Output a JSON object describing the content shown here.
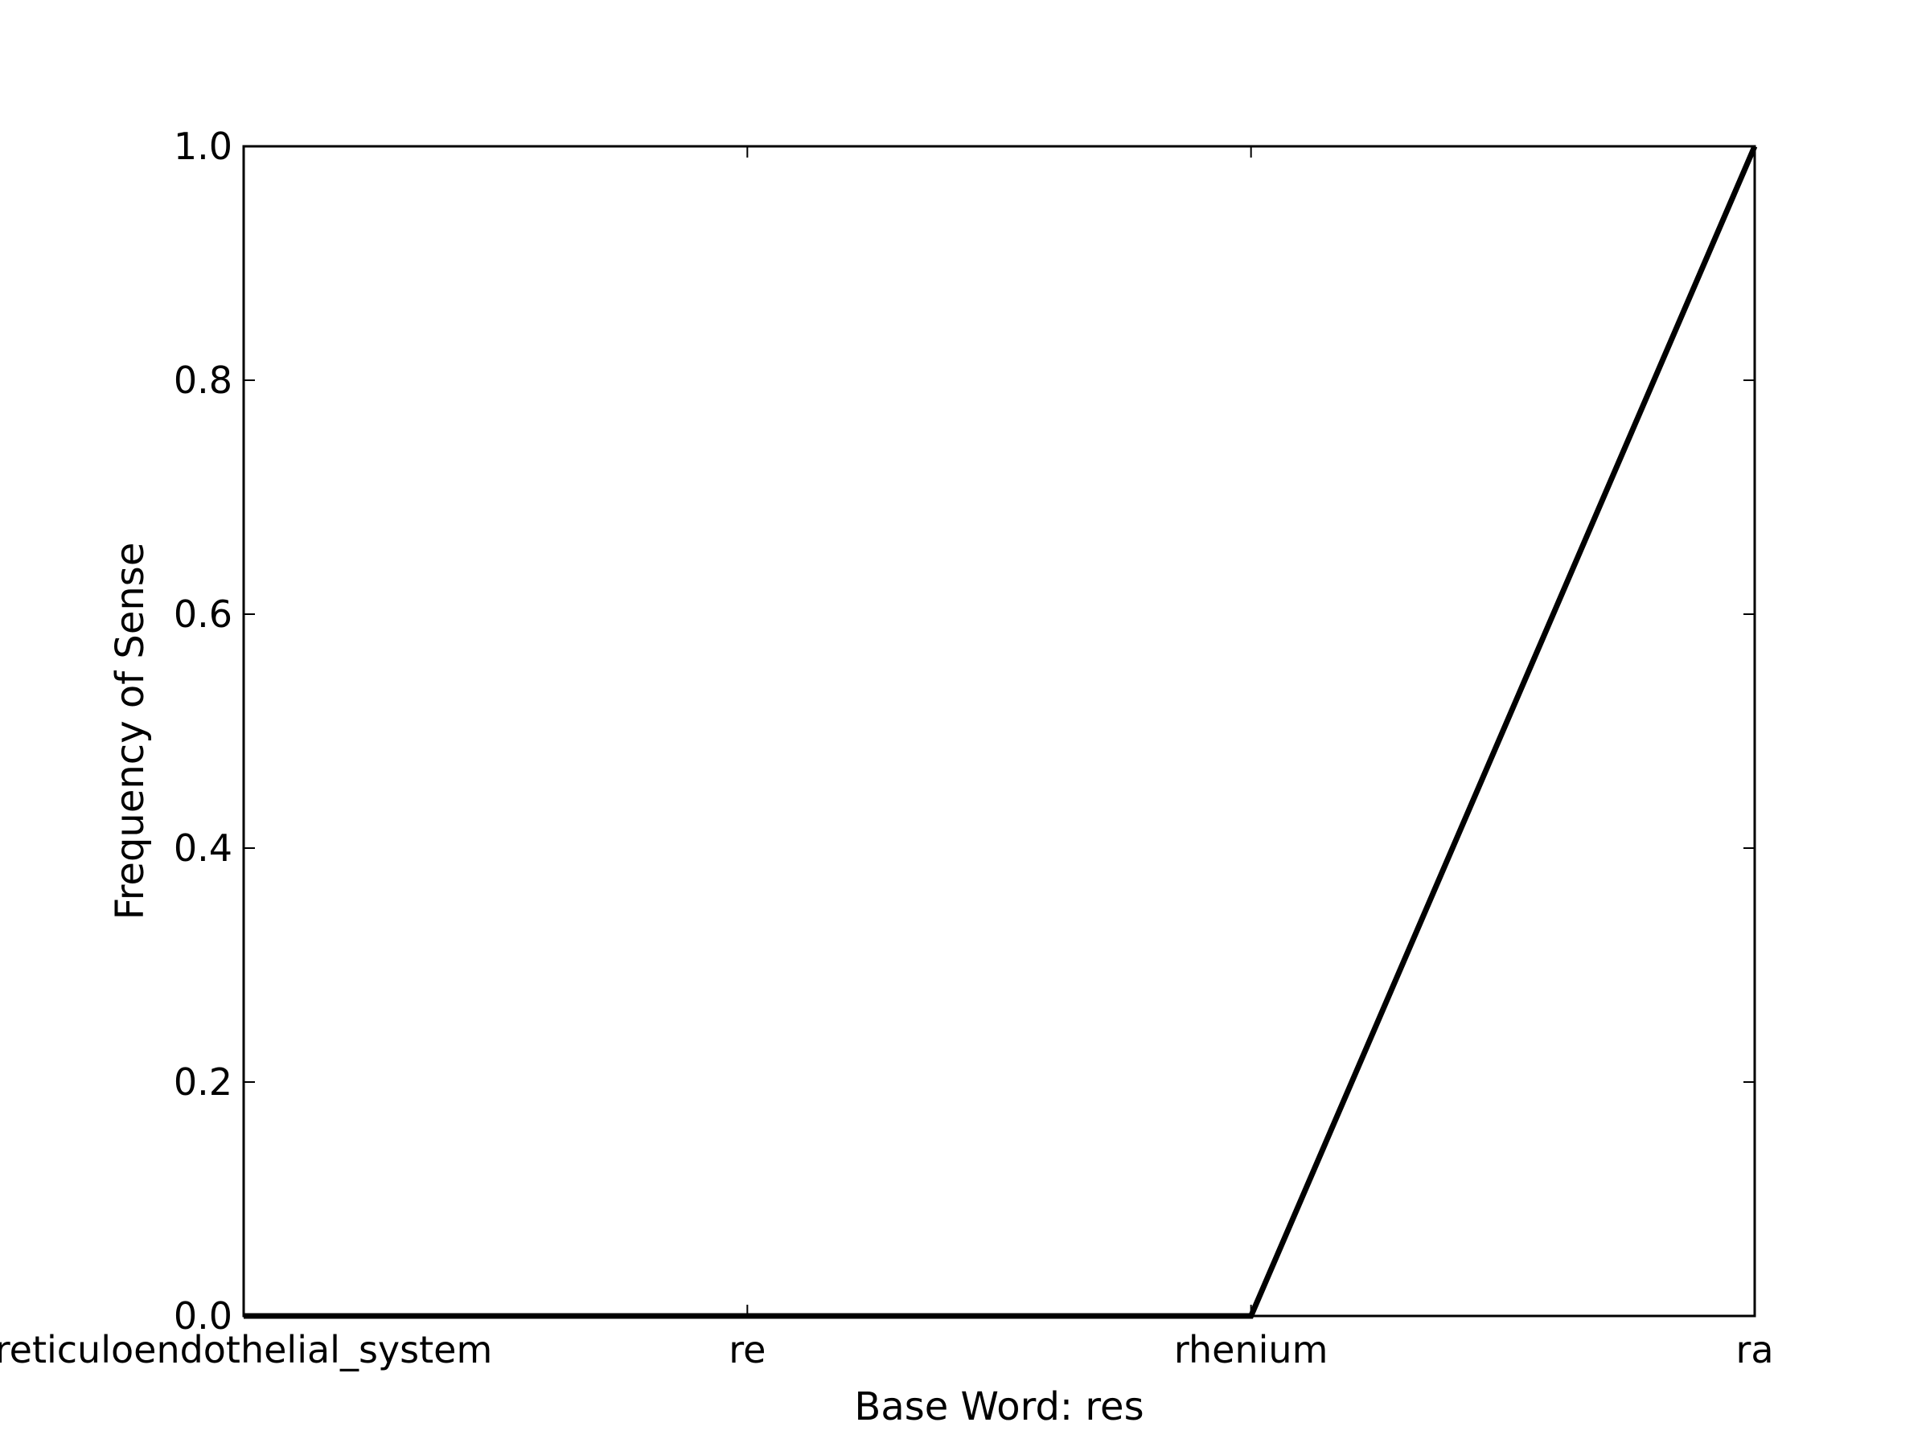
{
  "chart_data": {
    "type": "line",
    "categories": [
      "reticuloendothelial_system",
      "re",
      "rhenium",
      "ra"
    ],
    "series": [
      {
        "values": [
          0.0,
          0.0,
          0.0,
          1.0
        ]
      }
    ],
    "xlabel": "Base Word: res",
    "ylabel": "Frequency of Sense",
    "ylim": [
      0.0,
      1.0
    ],
    "yticks": [
      0.0,
      0.2,
      0.4,
      0.6,
      0.8,
      1.0
    ],
    "ytick_labels": [
      "0.0",
      "0.2",
      "0.4",
      "0.6",
      "0.8",
      "1.0"
    ],
    "grid": false,
    "legend": "none",
    "line_color": "#000000"
  }
}
